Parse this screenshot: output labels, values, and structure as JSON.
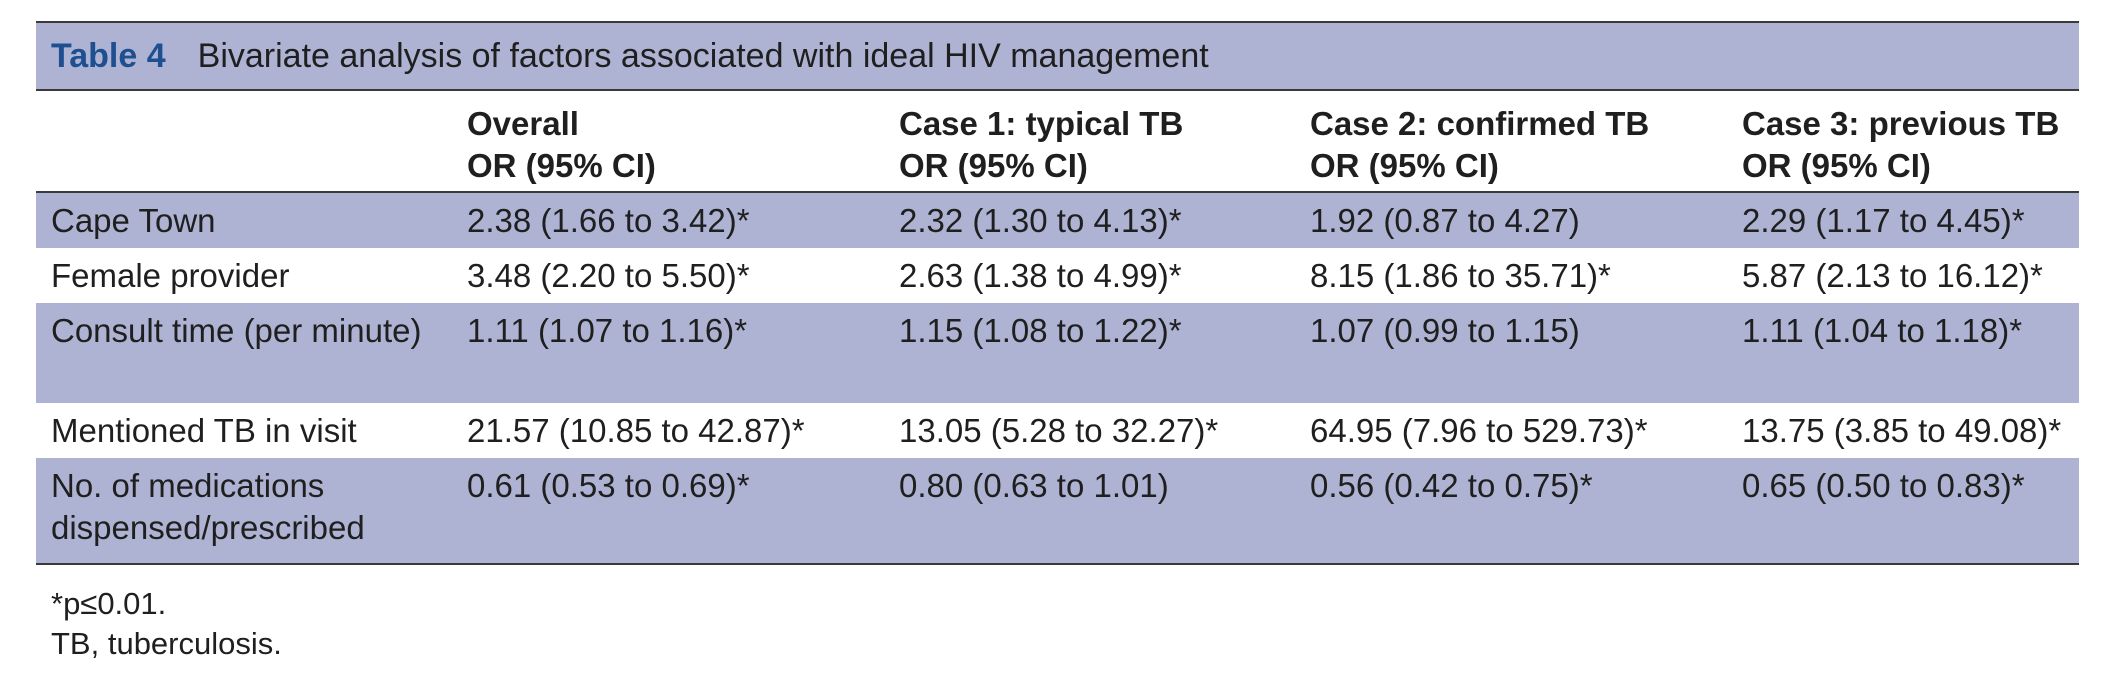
{
  "table": {
    "label": "Table 4",
    "title": "Bivariate analysis of factors associated with ideal HIV management",
    "headers": [
      {
        "line1": "",
        "line2": ""
      },
      {
        "line1": "Overall",
        "line2": "OR (95% CI)"
      },
      {
        "line1": "Case 1: typical TB",
        "line2": "OR (95% CI)"
      },
      {
        "line1": "Case 2: confirmed TB",
        "line2": "OR (95% CI)"
      },
      {
        "line1": "Case 3: previous TB",
        "line2": "OR (95% CI)"
      }
    ],
    "rows": [
      [
        "Cape Town",
        "2.38 (1.66 to 3.42)*",
        "2.32 (1.30 to 4.13)*",
        "1.92 (0.87 to 4.27)",
        "2.29 (1.17 to 4.45)*"
      ],
      [
        "Female provider",
        "3.48 (2.20 to 5.50)*",
        "2.63 (1.38 to 4.99)*",
        "8.15 (1.86 to 35.71)*",
        "5.87 (2.13 to 16.12)*"
      ],
      [
        "Consult time (per minute)",
        "1.11 (1.07 to 1.16)*",
        "1.15 (1.08 to 1.22)*",
        "1.07 (0.99 to 1.15)",
        "1.11 (1.04 to 1.18)*"
      ],
      [
        "Mentioned TB in visit",
        "21.57 (10.85 to 42.87)*",
        "13.05 (5.28 to 32.27)*",
        "64.95 (7.96 to 529.73)*",
        "13.75 (3.85 to 49.08)*"
      ],
      [
        "No. of medications dispensed/prescribed",
        "0.61 (0.53 to 0.69)*",
        "0.80 (0.63 to 1.01)",
        "0.56 (0.42 to 0.75)*",
        "0.65 (0.50 to 0.83)*"
      ]
    ],
    "footnotes": [
      "*p≤0.01.",
      "TB, tuberculosis."
    ]
  }
}
